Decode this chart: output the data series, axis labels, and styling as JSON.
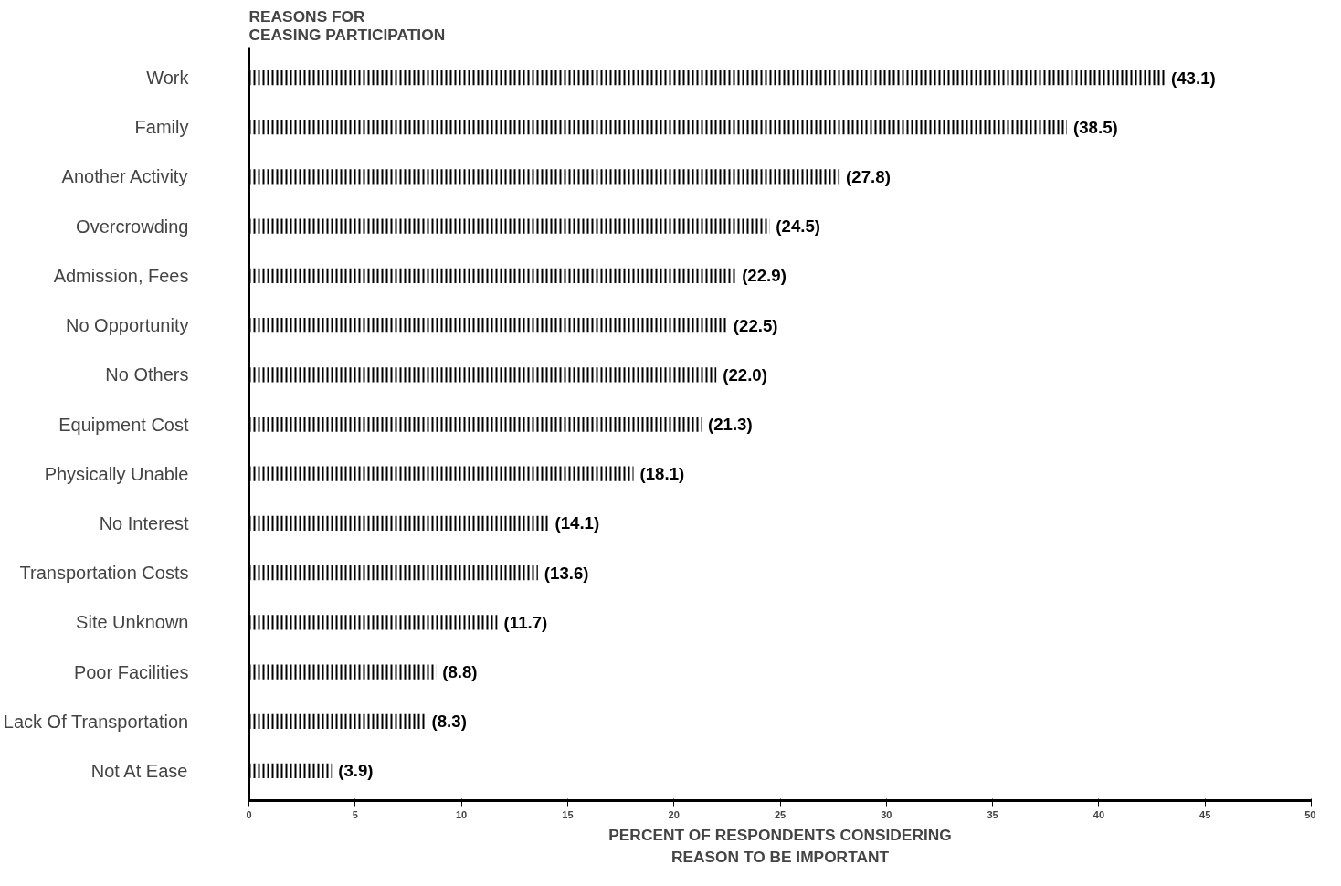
{
  "chart_data": {
    "type": "bar",
    "orientation": "horizontal",
    "ylabel": "REASONS FOR\nCEASING PARTICIPATION",
    "xlabel": "PERCENT OF RESPONDENTS CONSIDERING\nREASON TO BE IMPORTANT",
    "categories": [
      "Work",
      "Family",
      "Another Activity",
      "Overcrowding",
      "Admission, Fees",
      "No Opportunity",
      "No Others",
      "Equipment Cost",
      "Physically Unable",
      "No Interest",
      "Transportation Costs",
      "Site Unknown",
      "Poor Facilities",
      "Lack Of Transportation",
      "Not At Ease"
    ],
    "values": [
      43.1,
      38.5,
      27.8,
      24.5,
      22.9,
      22.5,
      22.0,
      21.3,
      18.1,
      14.1,
      13.6,
      11.7,
      8.8,
      8.3,
      3.9
    ],
    "value_labels": [
      "(43.1)",
      "(38.5)",
      "(27.8)",
      "(24.5)",
      "(22.9)",
      "(22.5)",
      "(22.0)",
      "(21.3)",
      "(18.1)",
      "(14.1)",
      "(13.6)",
      "(11.7)",
      "(8.8)",
      "(8.3)",
      "(3.9)"
    ],
    "color": "#000000",
    "xlim": [
      0,
      50
    ],
    "xticks": [
      0,
      5,
      10,
      15,
      20,
      25,
      30,
      35,
      40,
      45,
      50
    ],
    "grid": false
  }
}
